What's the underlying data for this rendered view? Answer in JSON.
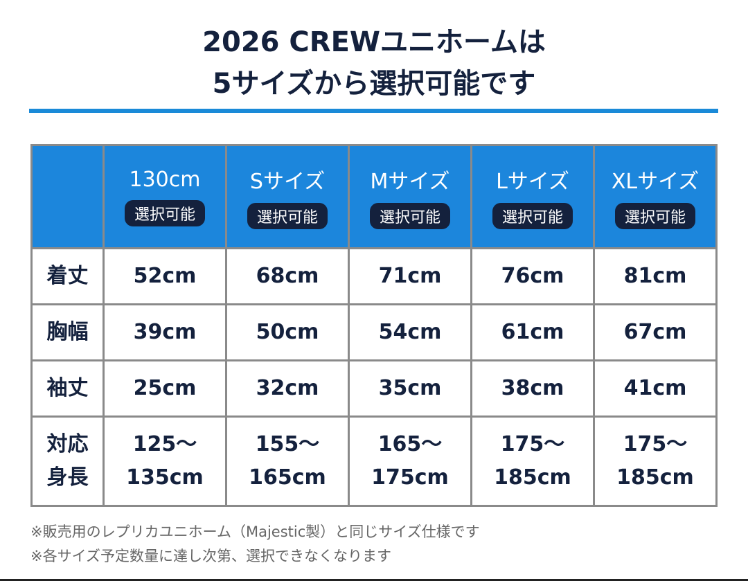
{
  "header": {
    "title": [
      "2026 CREWユニホームは",
      "5サイズから選択可能です"
    ]
  },
  "table": {
    "columns": [
      {
        "name": "130cm",
        "badge": "選択可能"
      },
      {
        "name": "Sサイズ",
        "badge": "選択可能"
      },
      {
        "name": "Mサイズ",
        "badge": "選択可能"
      },
      {
        "name": "Lサイズ",
        "badge": "選択可能"
      },
      {
        "name": "XLサイズ",
        "badge": "選択可能"
      }
    ],
    "rows": [
      {
        "label": "着丈",
        "cells": [
          "52cm",
          "68cm",
          "71cm",
          "76cm",
          "81cm"
        ]
      },
      {
        "label": "胸幅",
        "cells": [
          "39cm",
          "50cm",
          "54cm",
          "61cm",
          "67cm"
        ]
      },
      {
        "label": "袖丈",
        "cells": [
          "25cm",
          "32cm",
          "35cm",
          "38cm",
          "41cm"
        ]
      },
      {
        "label": "対応\n身長",
        "cells": [
          "125〜\n135cm",
          "155〜\n165cm",
          "165〜\n175cm",
          "175〜\n185cm",
          "175〜\n185cm"
        ]
      }
    ]
  },
  "notes": [
    "※販売用のレプリカユニホーム（Majestic製）と同じサイズ仕様です",
    "※各サイズ予定数量に達し次第、選択できなくなります"
  ]
}
